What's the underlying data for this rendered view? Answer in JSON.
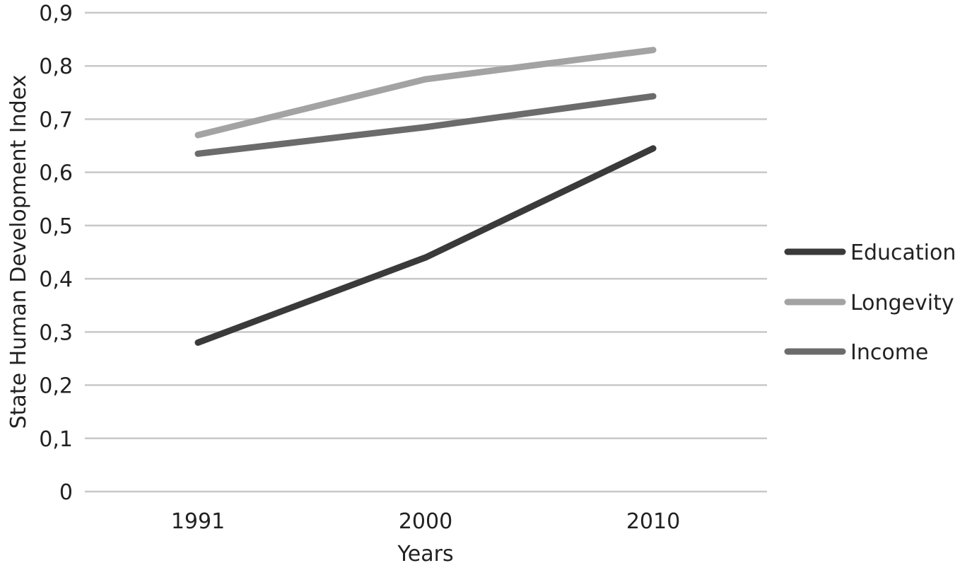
{
  "chart_data": {
    "type": "line",
    "xlabel": "Years",
    "ylabel": "State Human Development Index",
    "categories": [
      "1991",
      "2000",
      "2010"
    ],
    "ylim": [
      0,
      0.9
    ],
    "yticks": [
      "0",
      "0,1",
      "0,2",
      "0,3",
      "0,4",
      "0,5",
      "0,6",
      "0,7",
      "0,8",
      "0,9"
    ],
    "grid": true,
    "legend_position": "right",
    "series": [
      {
        "name": "Education",
        "values": [
          0.28,
          0.44,
          0.645
        ],
        "color": "#3a3a3a"
      },
      {
        "name": "Longevity",
        "values": [
          0.67,
          0.775,
          0.83
        ],
        "color": "#a3a3a3"
      },
      {
        "name": "Income",
        "values": [
          0.635,
          0.685,
          0.743
        ],
        "color": "#6b6b6b"
      }
    ]
  }
}
